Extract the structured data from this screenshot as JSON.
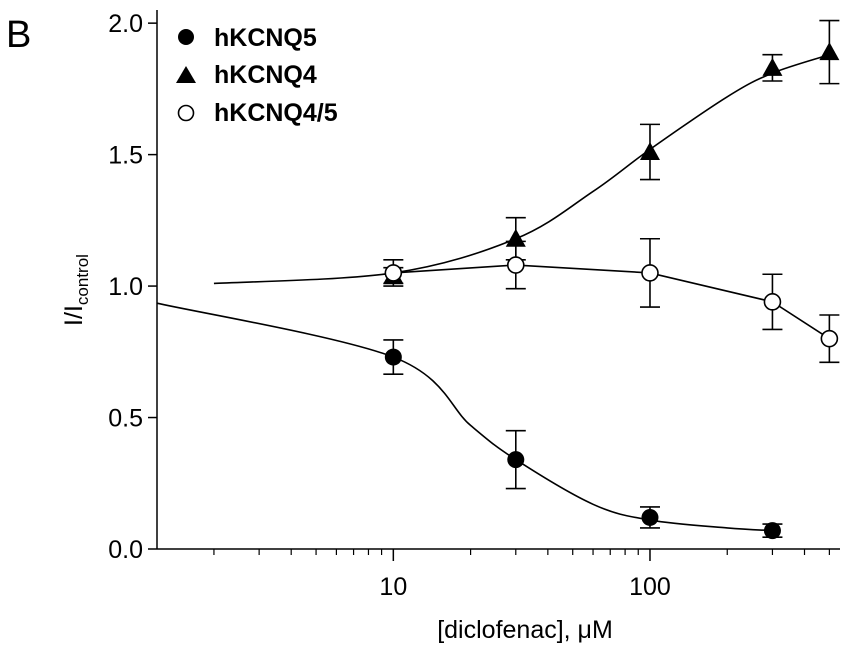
{
  "panel_label": "B",
  "chart_data": {
    "type": "scatter",
    "xscale": "log",
    "xlabel": "[diclofenac], μM",
    "ylabel_main": "I/I",
    "ylabel_sub": "control",
    "xlim": [
      1.2,
      550
    ],
    "ylim": [
      0,
      2.05
    ],
    "x_ticks": [
      10,
      100
    ],
    "y_ticks": [
      0.0,
      0.5,
      1.0,
      1.5,
      2.0
    ],
    "y_tick_labels": [
      "0.0",
      "0.5",
      "1.0",
      "1.5",
      "2.0"
    ],
    "legend_position": "top-left",
    "series": [
      {
        "name": "hKCNQ5",
        "marker": "circle-filled",
        "x": [
          10,
          30,
          100,
          300
        ],
        "y": [
          0.73,
          0.34,
          0.12,
          0.07
        ],
        "err": [
          0.065,
          0.11,
          0.04,
          0.025
        ],
        "fit": {
          "kind": "hill",
          "x": [
            1.2,
            300
          ],
          "y_at_x": [
            [
              1.2,
              0.935
            ],
            [
              10,
              0.73
            ],
            [
              20,
              0.47
            ],
            [
              30,
              0.34
            ],
            [
              60,
              0.17
            ],
            [
              100,
              0.11
            ],
            [
              200,
              0.08
            ],
            [
              300,
              0.07
            ]
          ]
        }
      },
      {
        "name": "hKCNQ4",
        "marker": "triangle-filled",
        "x": [
          10,
          30,
          100,
          300,
          500
        ],
        "y": [
          1.04,
          1.18,
          1.51,
          1.83,
          1.89
        ],
        "err": [
          0.03,
          0.08,
          0.105,
          0.05,
          0.12
        ],
        "fit": {
          "kind": "hill",
          "x": [
            2,
            500
          ],
          "y_at_x": [
            [
              2,
              1.01
            ],
            [
              10,
              1.05
            ],
            [
              30,
              1.18
            ],
            [
              60,
              1.36
            ],
            [
              100,
              1.52
            ],
            [
              200,
              1.72
            ],
            [
              300,
              1.81
            ],
            [
              500,
              1.88
            ]
          ]
        }
      },
      {
        "name": "hKCNQ4/5",
        "marker": "circle-open",
        "x": [
          10,
          30,
          100,
          300,
          500
        ],
        "y": [
          1.05,
          1.08,
          1.05,
          0.94,
          0.8
        ],
        "err": [
          0.05,
          0.09,
          0.13,
          0.105,
          0.09
        ],
        "fit": {
          "kind": "connect"
        }
      }
    ]
  }
}
